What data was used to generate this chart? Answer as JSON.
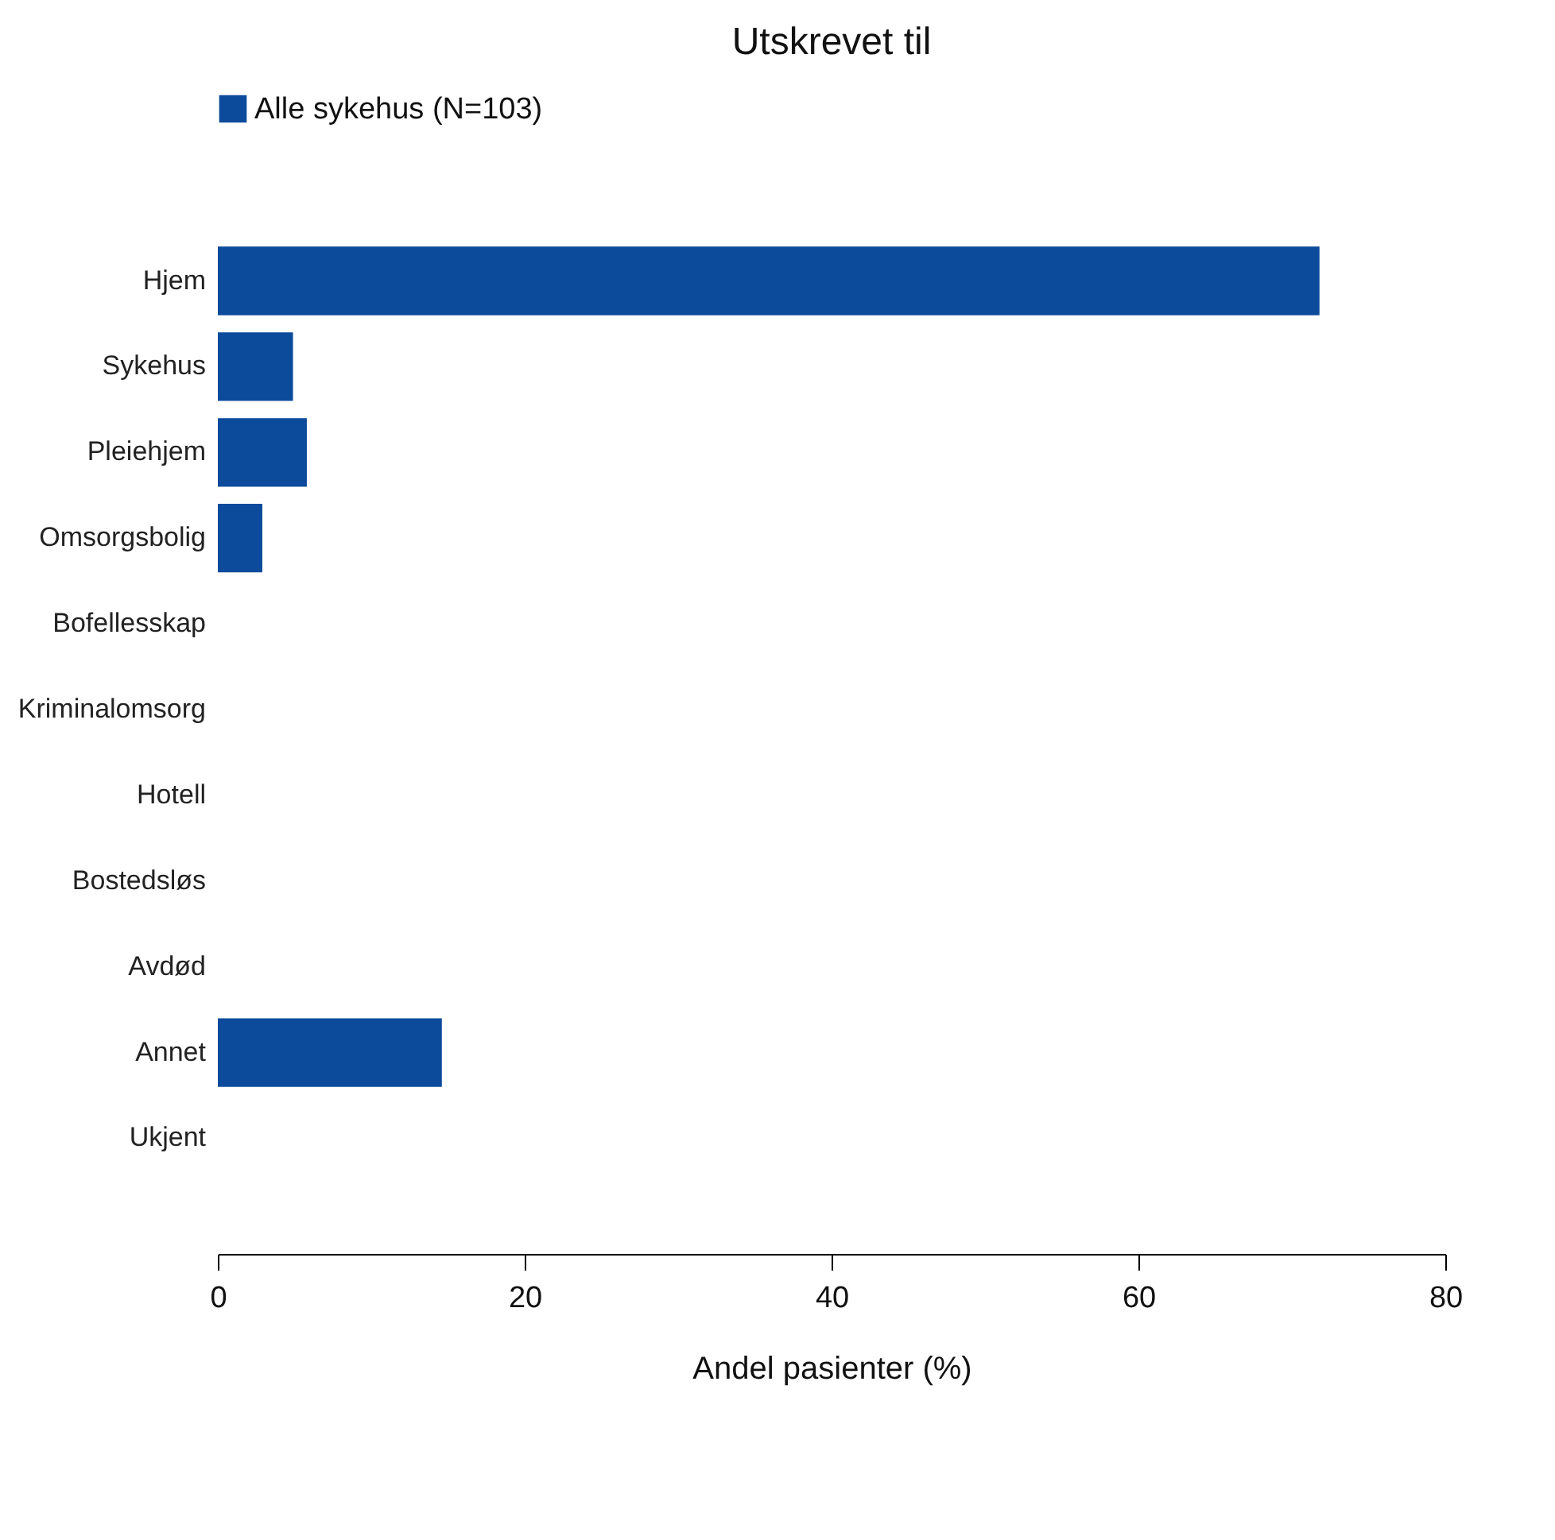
{
  "chart_data": {
    "type": "bar",
    "orientation": "horizontal",
    "title": "Utskrevet til",
    "xlabel": "Andel pasienter (%)",
    "categories": [
      "Hjem",
      "Sykehus",
      "Pleiehjem",
      "Omsorgsbolig",
      "Bofellesskap",
      "Kriminalomsorg",
      "Hotell",
      "Bostedsløs",
      "Avdød",
      "Annet",
      "Ukjent"
    ],
    "series": [
      {
        "name": "Alle sykehus (N=103)",
        "color": "#0c4a9b",
        "values": [
          71.8,
          4.9,
          5.8,
          2.9,
          0,
          0,
          0,
          0,
          0,
          14.6,
          0
        ]
      }
    ],
    "xlim": [
      0,
      80
    ],
    "xticks": [
      0,
      20,
      40,
      60,
      80
    ],
    "grid": false,
    "legend": "top"
  }
}
